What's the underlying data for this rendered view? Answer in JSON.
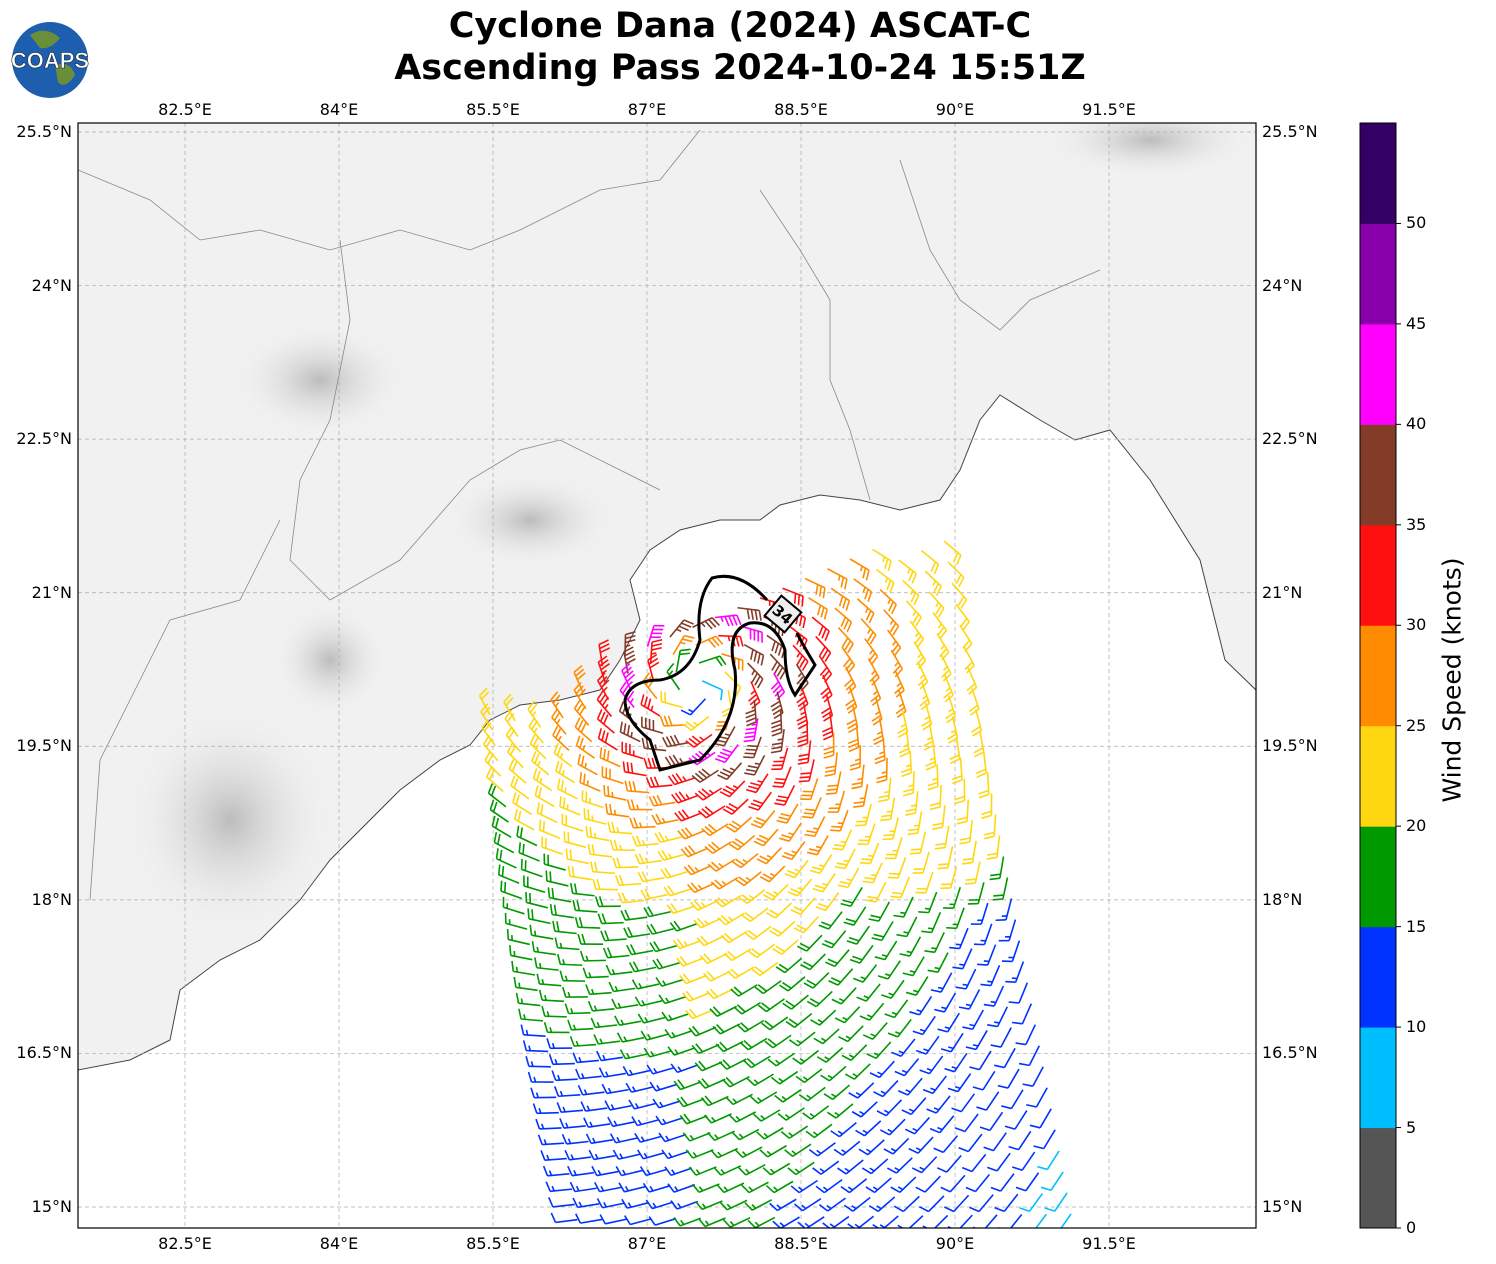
{
  "title": {
    "line1": "Cyclone Dana (2024) ASCAT-C",
    "line2": "Ascending Pass 2024-10-24 15:51Z"
  },
  "logo": {
    "text": "COAPS"
  },
  "map": {
    "lon_ticks": [
      {
        "value": 82.5,
        "label": "82.5°E"
      },
      {
        "value": 84,
        "label": "84°E"
      },
      {
        "value": 85.5,
        "label": "85.5°E"
      },
      {
        "value": 87,
        "label": "87°E"
      },
      {
        "value": 88.5,
        "label": "88.5°E"
      },
      {
        "value": 90,
        "label": "90°E"
      },
      {
        "value": 91.5,
        "label": "91.5°E"
      }
    ],
    "lat_ticks": [
      {
        "value": 25.5,
        "label": "25.5°N"
      },
      {
        "value": 24,
        "label": "24°N"
      },
      {
        "value": 22.5,
        "label": "22.5°N"
      },
      {
        "value": 21,
        "label": "21°N"
      },
      {
        "value": 19.5,
        "label": "19.5°N"
      },
      {
        "value": 18,
        "label": "18°N"
      },
      {
        "value": 16.5,
        "label": "16.5°N"
      },
      {
        "value": 15,
        "label": "15°N"
      }
    ],
    "contour_label": "34",
    "storm_center": {
      "lon": 87.5,
      "lat": 20.1
    }
  },
  "colorbar": {
    "label": "Wind Speed (knots)",
    "ticks": [
      "0",
      "5",
      "10",
      "15",
      "20",
      "25",
      "30",
      "35",
      "40",
      "45",
      "50"
    ],
    "colors": [
      "#555555",
      "#00bfff",
      "#0033ff",
      "#009900",
      "#ffd710",
      "#ff8c00",
      "#ff1010",
      "#833c27",
      "#ff00ff",
      "#8800aa",
      "#330066"
    ],
    "max": 55
  }
}
